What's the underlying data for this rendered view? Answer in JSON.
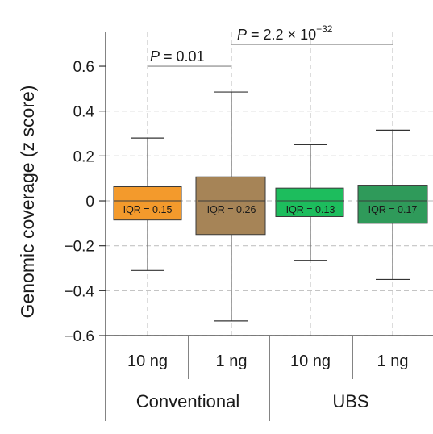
{
  "chart_data": {
    "type": "box",
    "ylabel": "Genomic coverage (z score)",
    "ylim": [
      -0.6,
      0.7
    ],
    "yticks": [
      0.6,
      0.4,
      0.2,
      0,
      -0.2,
      -0.4,
      -0.6
    ],
    "ytick_labels": [
      "0.6",
      "0.4",
      "0.2",
      "0",
      "−0.2",
      "−0.4",
      "−0.6"
    ],
    "grid": true,
    "groups": [
      {
        "label": "Conventional"
      },
      {
        "label": "UBS"
      }
    ],
    "boxes": [
      {
        "category": "10 ng",
        "group": "Conventional",
        "color": "#f39a2c",
        "whisker_low": -0.31,
        "q1": -0.085,
        "median": 0.0,
        "q3": 0.063,
        "whisker_high": 0.28,
        "iqr_label": "IQR = 0.15"
      },
      {
        "category": "1 ng",
        "group": "Conventional",
        "color": "#a68457",
        "whisker_low": -0.535,
        "q1": -0.15,
        "median": 0.0,
        "q3": 0.107,
        "whisker_high": 0.485,
        "iqr_label": "IQR = 0.26"
      },
      {
        "category": "10 ng",
        "group": "UBS",
        "color": "#1dbd5d",
        "whisker_low": -0.265,
        "q1": -0.07,
        "median": 0.0,
        "q3": 0.057,
        "whisker_high": 0.25,
        "iqr_label": "IQR = 0.13"
      },
      {
        "category": "1 ng",
        "group": "UBS",
        "color": "#2f9a5a",
        "whisker_low": -0.35,
        "q1": -0.1,
        "median": 0.0,
        "q3": 0.07,
        "whisker_high": 0.315,
        "iqr_label": "IQR = 0.17"
      }
    ],
    "annotations": [
      {
        "from": 0,
        "to": 1,
        "level": 0.6,
        "italic": "P",
        "text": " = 0.01"
      },
      {
        "from": 1,
        "to": 3,
        "level": 0.7,
        "italic": "P",
        "text": " = 2.2 × 10",
        "sup": "−32"
      }
    ]
  }
}
